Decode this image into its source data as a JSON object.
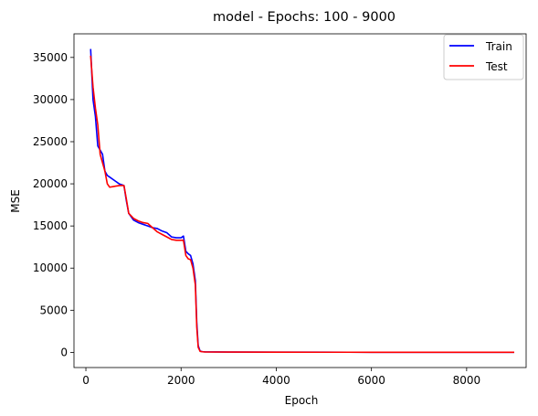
{
  "chart_data": {
    "type": "line",
    "title": "model - Epochs: 100 - 9000",
    "xlabel": "Epoch",
    "ylabel": "MSE",
    "xlim": [
      -250,
      9250
    ],
    "ylim": [
      -1800,
      37800
    ],
    "xticks": [
      0,
      2000,
      4000,
      6000,
      8000
    ],
    "yticks": [
      0,
      5000,
      10000,
      15000,
      20000,
      25000,
      30000,
      35000
    ],
    "grid": false,
    "legend_position": "top-right",
    "colors": {
      "Train": "#0000ff",
      "Test": "#ff0000"
    },
    "series": [
      {
        "name": "Train",
        "color": "#0000ff",
        "x": [
          100,
          150,
          200,
          250,
          300,
          350,
          400,
          450,
          500,
          600,
          700,
          800,
          850,
          900,
          1000,
          1100,
          1200,
          1300,
          1400,
          1500,
          1600,
          1700,
          1800,
          1900,
          2000,
          2050,
          2100,
          2150,
          2200,
          2250,
          2300,
          2330,
          2360,
          2400,
          2450,
          2500,
          3000,
          4000,
          5000,
          6000,
          7000,
          8000,
          9000
        ],
        "y": [
          36000,
          30000,
          28000,
          24500,
          24000,
          23500,
          21500,
          21000,
          20800,
          20400,
          20000,
          19800,
          18000,
          16500,
          15700,
          15400,
          15200,
          15000,
          14800,
          14700,
          14400,
          14200,
          13700,
          13600,
          13600,
          13800,
          12000,
          11700,
          11500,
          10500,
          8500,
          3500,
          800,
          150,
          80,
          60,
          40,
          25,
          20,
          15,
          12,
          10,
          10
        ]
      },
      {
        "name": "Test",
        "color": "#ff0000",
        "x": [
          100,
          150,
          200,
          250,
          300,
          350,
          400,
          450,
          500,
          600,
          700,
          800,
          850,
          900,
          1000,
          1100,
          1200,
          1300,
          1400,
          1500,
          1600,
          1700,
          1800,
          1900,
          2000,
          2050,
          2100,
          2150,
          2200,
          2250,
          2300,
          2330,
          2360,
          2400,
          2450,
          2500,
          3000,
          4000,
          5000,
          6000,
          7000,
          8000,
          9000
        ],
        "y": [
          35200,
          31500,
          29000,
          27000,
          23500,
          22500,
          21500,
          20000,
          19600,
          19700,
          19800,
          19800,
          18200,
          16500,
          15900,
          15600,
          15400,
          15300,
          14800,
          14300,
          14000,
          13700,
          13400,
          13300,
          13300,
          13300,
          11500,
          11100,
          11000,
          10000,
          8000,
          3000,
          600,
          120,
          70,
          50,
          35,
          22,
          18,
          14,
          11,
          10,
          10
        ]
      }
    ]
  }
}
